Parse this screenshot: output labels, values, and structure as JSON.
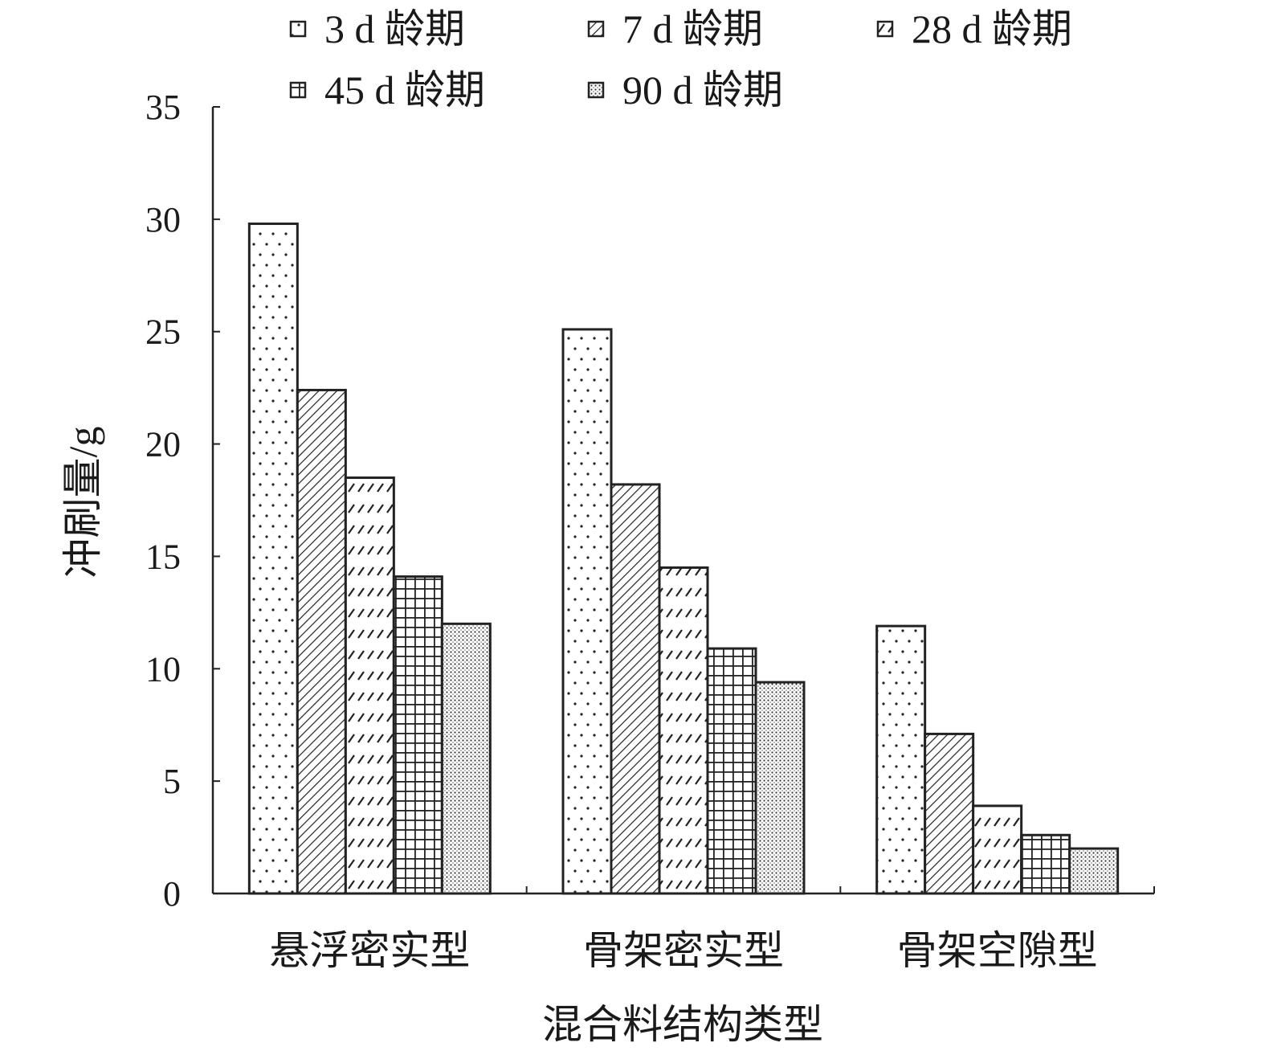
{
  "chart_data": {
    "type": "bar",
    "title": "",
    "xlabel": "混合料结构类型",
    "ylabel": "冲刷量/g",
    "ylim": [
      0,
      35
    ],
    "yticks": [
      0,
      5,
      10,
      15,
      20,
      25,
      30,
      35
    ],
    "grid": false,
    "legend_position": "top",
    "categories": [
      "悬浮密实型",
      "骨架密实型",
      "骨架空隙型"
    ],
    "series": [
      {
        "name": "3 d 龄期",
        "pattern": "sparse-dots",
        "values": [
          29.8,
          25.1,
          11.9
        ]
      },
      {
        "name": "7 d 龄期",
        "pattern": "diagonal-dense",
        "values": [
          22.4,
          18.2,
          7.1
        ]
      },
      {
        "name": "28 d 龄期",
        "pattern": "dashed-slash",
        "values": [
          18.5,
          14.5,
          3.9
        ]
      },
      {
        "name": "45 d 龄期",
        "pattern": "grid",
        "values": [
          14.1,
          10.9,
          2.6
        ]
      },
      {
        "name": "90 d 龄期",
        "pattern": "fine-dots",
        "values": [
          12.0,
          9.4,
          2.0
        ]
      }
    ]
  }
}
